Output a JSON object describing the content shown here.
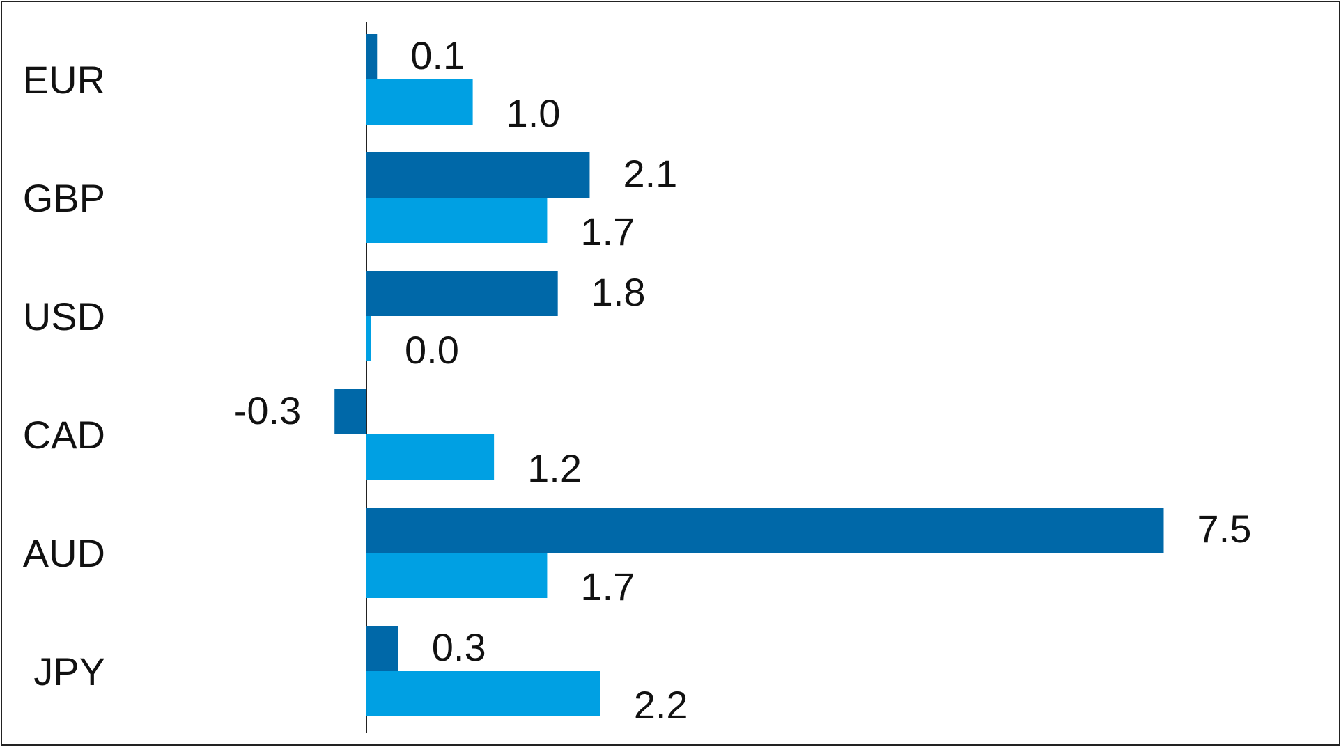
{
  "chart_data": {
    "type": "bar",
    "orientation": "horizontal",
    "categories": [
      "EUR",
      "GBP",
      "USD",
      "CAD",
      "AUD",
      "JPY"
    ],
    "series": [
      {
        "color": "#0068A8",
        "values": [
          0.1,
          2.1,
          1.8,
          -0.3,
          7.5,
          0.3
        ]
      },
      {
        "color": "#00A0E3",
        "values": [
          1.0,
          1.7,
          0.0,
          1.2,
          1.7,
          2.2
        ]
      }
    ],
    "data_labels": [
      [
        "0.1",
        "2.1",
        "1.8",
        "-0.3",
        "7.5",
        "0.3"
      ],
      [
        "1.0",
        "1.7",
        "0.0",
        "1.2",
        "1.7",
        "2.2"
      ]
    ],
    "xlim": [
      -0.3,
      7.5
    ],
    "title": "",
    "xlabel": "",
    "ylabel": "",
    "grid": false,
    "legend": "none"
  }
}
